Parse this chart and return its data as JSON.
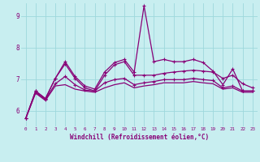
{
  "xlabel": "Windchill (Refroidissement éolien,°C)",
  "x_ticks": [
    0,
    1,
    2,
    3,
    4,
    5,
    6,
    7,
    8,
    9,
    10,
    11,
    12,
    13,
    14,
    15,
    16,
    17,
    18,
    19,
    20,
    21,
    22,
    23
  ],
  "ylim": [
    5.5,
    9.4
  ],
  "yticks": [
    6,
    7,
    8,
    9
  ],
  "bg_color": "#c8eef0",
  "grid_color": "#9dd8dc",
  "line_color": "#880077",
  "series": {
    "main": [
      5.75,
      6.62,
      6.38,
      7.02,
      7.55,
      7.08,
      6.78,
      6.68,
      7.22,
      7.52,
      7.62,
      7.22,
      9.32,
      7.55,
      7.62,
      7.55,
      7.55,
      7.62,
      7.52,
      7.25,
      6.82,
      7.32,
      6.62,
      6.62
    ],
    "upper": [
      5.75,
      6.62,
      6.38,
      7.02,
      7.48,
      7.02,
      6.72,
      6.62,
      7.12,
      7.45,
      7.55,
      7.12,
      7.12,
      7.12,
      7.18,
      7.22,
      7.25,
      7.28,
      7.25,
      7.22,
      7.02,
      7.12,
      6.85,
      6.72
    ],
    "lower1": [
      5.75,
      6.58,
      6.35,
      6.85,
      7.08,
      6.82,
      6.65,
      6.62,
      6.88,
      6.98,
      7.02,
      6.82,
      6.88,
      6.92,
      6.98,
      6.98,
      6.98,
      7.02,
      6.98,
      6.95,
      6.72,
      6.78,
      6.62,
      6.62
    ],
    "lower2": [
      5.75,
      6.55,
      6.32,
      6.78,
      6.82,
      6.68,
      6.62,
      6.58,
      6.72,
      6.82,
      6.88,
      6.72,
      6.78,
      6.82,
      6.88,
      6.88,
      6.88,
      6.92,
      6.88,
      6.85,
      6.68,
      6.72,
      6.58,
      6.58
    ]
  }
}
